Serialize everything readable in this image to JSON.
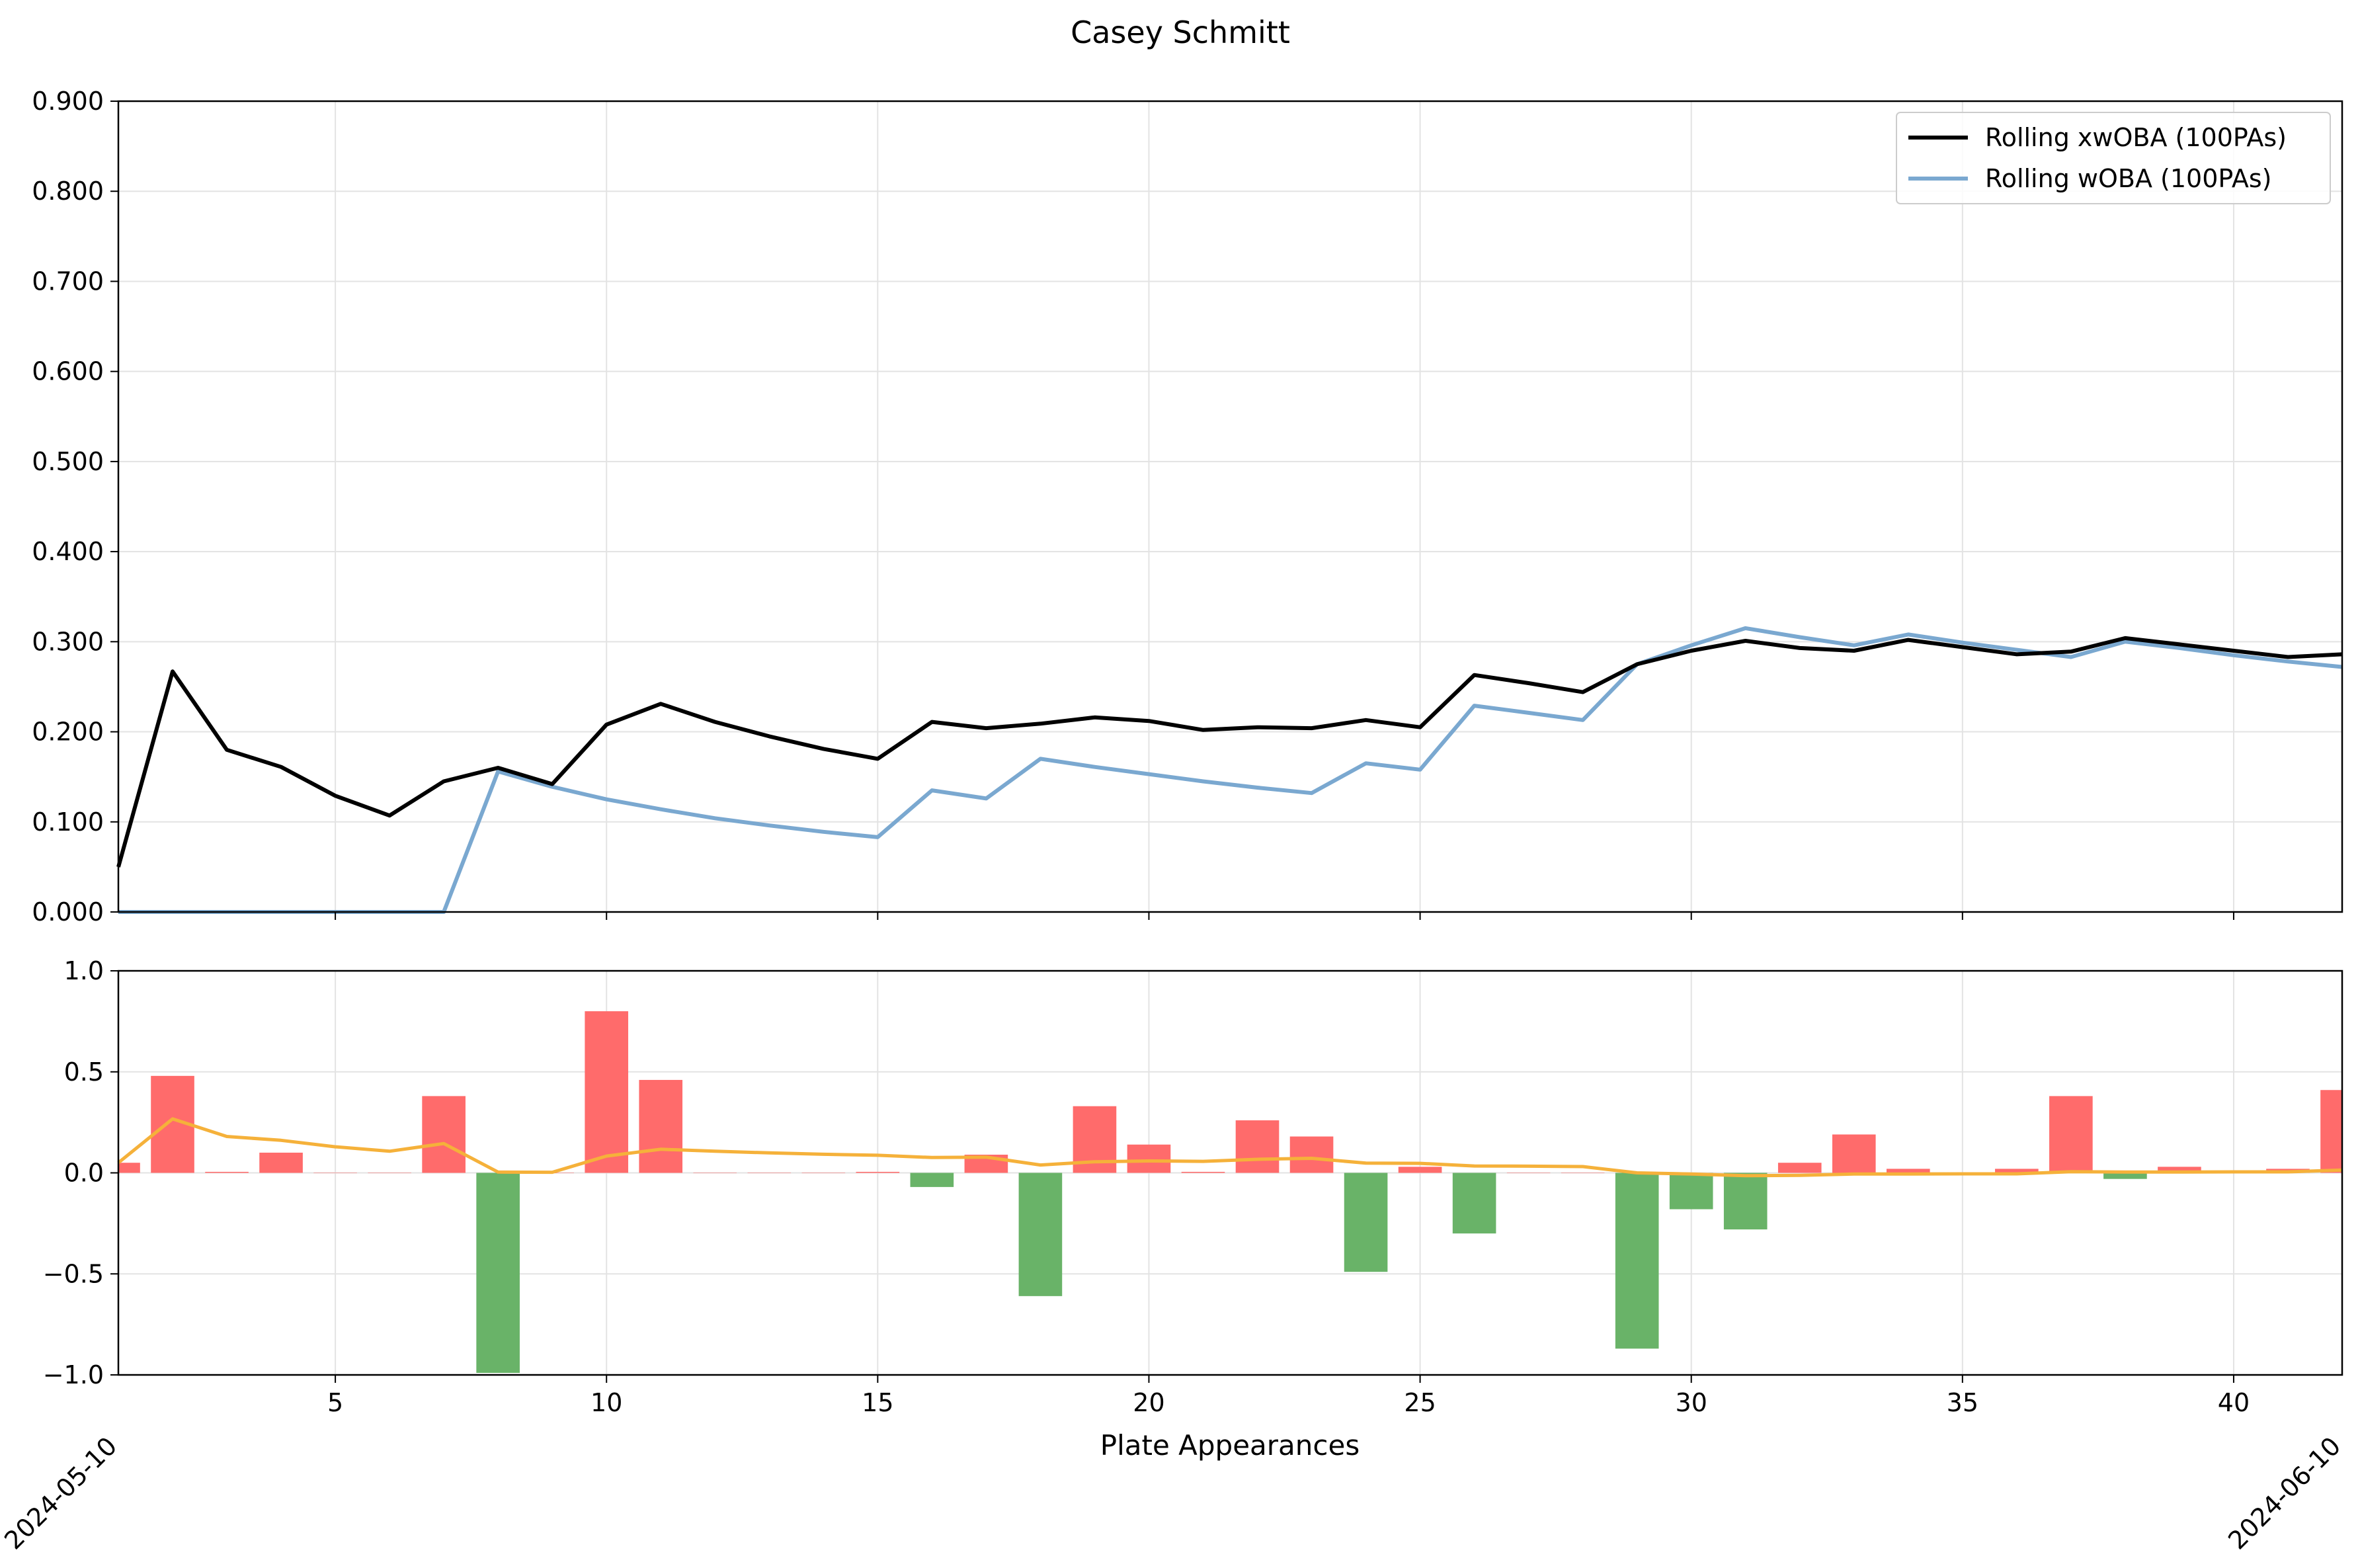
{
  "chart_data": {
    "type": "line",
    "title": "Casey Schmitt",
    "xlabel": "Plate Appearances",
    "x": [
      1,
      2,
      3,
      4,
      5,
      6,
      7,
      8,
      9,
      10,
      11,
      12,
      13,
      14,
      15,
      16,
      17,
      18,
      19,
      20,
      21,
      22,
      23,
      24,
      25,
      26,
      27,
      28,
      29,
      30,
      31,
      32,
      33,
      34,
      35,
      36,
      37,
      38,
      39,
      40,
      41,
      42
    ],
    "xlim": [
      1,
      42
    ],
    "xticks": [
      5,
      10,
      15,
      20,
      25,
      30,
      35,
      40
    ],
    "date_labels": [
      {
        "x": 1,
        "text": "2024-05-10"
      },
      {
        "x": 42,
        "text": "2024-06-10"
      }
    ],
    "top_panel": {
      "ylim": [
        0,
        0.9
      ],
      "yticks": [
        "0.000",
        "0.100",
        "0.200",
        "0.300",
        "0.400",
        "0.500",
        "0.600",
        "0.700",
        "0.800",
        "0.900"
      ],
      "grid": true,
      "legend_position": "top-right",
      "series": [
        {
          "name": "Rolling xwOBA (100PAs)",
          "color": "#000000",
          "values": [
            0.05,
            0.267,
            0.18,
            0.161,
            0.129,
            0.107,
            0.145,
            0.16,
            0.142,
            0.208,
            0.231,
            0.211,
            0.195,
            0.181,
            0.17,
            0.211,
            0.204,
            0.209,
            0.216,
            0.212,
            0.202,
            0.205,
            0.204,
            0.213,
            0.205,
            0.263,
            0.254,
            0.244,
            0.275,
            0.29,
            0.301,
            0.293,
            0.29,
            0.302,
            0.294,
            0.286,
            0.289,
            0.304,
            0.297,
            0.29,
            0.283,
            0.286
          ]
        },
        {
          "name": "Rolling wOBA (100PAs)",
          "color": "#7aa8d0",
          "values": [
            0.0,
            0.0,
            0.0,
            0.0,
            0.0,
            0.0,
            0.0,
            0.156,
            0.139,
            0.125,
            0.114,
            0.104,
            0.096,
            0.089,
            0.083,
            0.135,
            0.126,
            0.17,
            0.161,
            0.153,
            0.145,
            0.138,
            0.132,
            0.165,
            0.158,
            0.229,
            0.221,
            0.213,
            0.275,
            0.296,
            0.315,
            0.305,
            0.296,
            0.308,
            0.299,
            0.291,
            0.283,
            0.3,
            0.293,
            0.285,
            0.278,
            0.272
          ]
        }
      ]
    },
    "bottom_panel": {
      "type": "bar",
      "ylim": [
        -1.0,
        1.0
      ],
      "yticks": [
        "1.0",
        "0.5",
        "0.0",
        "−0.5",
        "−1.0"
      ],
      "grid": true,
      "bar_values": [
        0.05,
        0.48,
        0.005,
        0.1,
        0,
        0,
        0.38,
        -0.99,
        0,
        0.8,
        0.46,
        0,
        0,
        0,
        0.005,
        -0.07,
        0.09,
        -0.61,
        0.33,
        0.14,
        0.005,
        0.26,
        0.18,
        -0.49,
        0.03,
        -0.3,
        0,
        0,
        -0.87,
        -0.18,
        -0.28,
        0.05,
        0.19,
        0.02,
        0,
        0.02,
        0.38,
        -0.03,
        0.03,
        0,
        0.02,
        0.41
      ],
      "positive_color": "#ff6b6b",
      "negative_color": "#69b368",
      "line_color": "#f5b13a",
      "line_values": [
        0.05,
        0.267,
        0.18,
        0.161,
        0.129,
        0.107,
        0.145,
        0.004,
        0.003,
        0.083,
        0.117,
        0.107,
        0.099,
        0.092,
        0.087,
        0.076,
        0.078,
        0.039,
        0.055,
        0.059,
        0.057,
        0.067,
        0.072,
        0.048,
        0.047,
        0.034,
        0.033,
        0.031,
        0.0,
        -0.006,
        -0.014,
        -0.012,
        -0.006,
        -0.006,
        -0.005,
        -0.005,
        0.006,
        0.004,
        0.004,
        0.005,
        0.005,
        0.014
      ]
    }
  }
}
